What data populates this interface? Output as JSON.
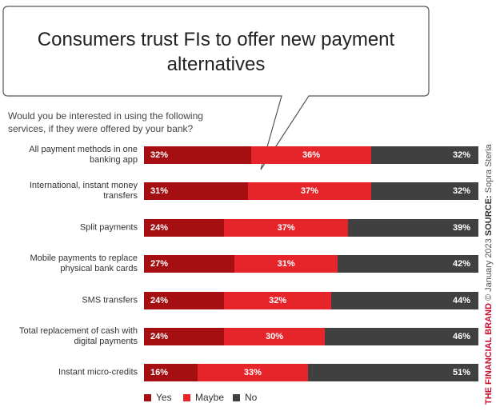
{
  "chart_data": {
    "type": "stacked-bar",
    "title": "Consumers trust FIs to offer new payment alternatives",
    "subtitle": "Would you be interested in using the following services, if they were offered by your bank?",
    "categories": [
      "All payment methods in one banking app",
      "International, instant money transfers",
      "Split payments",
      "Mobile payments to replace physical bank cards",
      "SMS transfers",
      "Total replacement of cash with digital payments",
      "Instant micro-credits"
    ],
    "series": [
      {
        "name": "Yes",
        "color": "#a50f11",
        "values": [
          32,
          31,
          24,
          27,
          24,
          24,
          16
        ],
        "value_labels": [
          "32%",
          "31%",
          "24%",
          "27%",
          "24%",
          "24%",
          "16%"
        ]
      },
      {
        "name": "Maybe",
        "color": "#e6252b",
        "values": [
          36,
          37,
          37,
          31,
          32,
          30,
          33
        ],
        "value_labels": [
          "36%",
          "37%",
          "37%",
          "31%",
          "32%",
          "30%",
          "33%"
        ]
      },
      {
        "name": "No",
        "color": "#404040",
        "values": [
          32,
          32,
          39,
          42,
          44,
          46,
          51
        ],
        "value_labels": [
          "32%",
          "32%",
          "39%",
          "42%",
          "44%",
          "46%",
          "51%"
        ]
      }
    ],
    "brand": "THE FINANCIAL BRAND",
    "date_note": "© January 2023",
    "source_label": "SOURCE:",
    "source": "Sopra Steria"
  }
}
